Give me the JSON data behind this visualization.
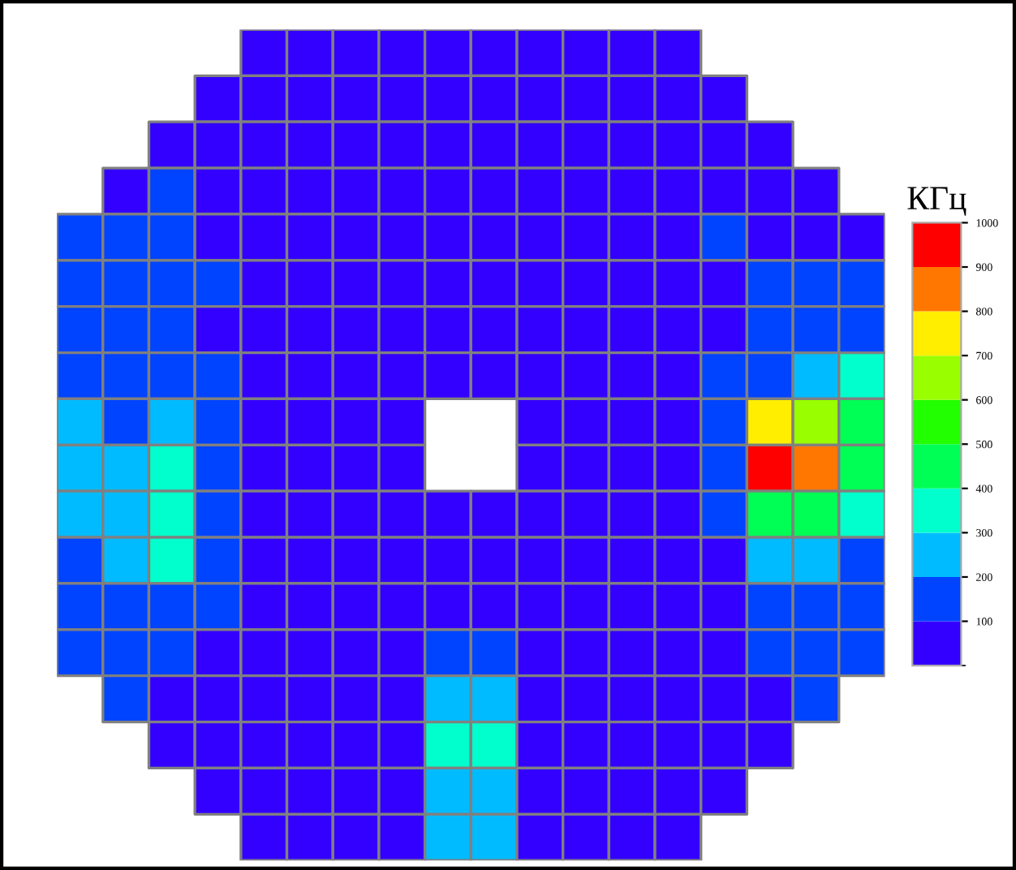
{
  "chart_data": {
    "type": "heatmap",
    "clabel": "КГц",
    "categories": [
      null,
      null,
      null,
      null,
      null,
      null,
      null,
      null,
      null,
      null,
      null,
      null,
      null,
      null,
      null,
      null,
      null,
      null
    ],
    "y_categories": [
      null,
      null,
      null,
      null,
      null,
      null,
      null,
      null,
      null,
      null,
      null,
      null,
      null,
      null,
      null,
      null,
      null,
      null
    ],
    "cells": [
      [
        null,
        null,
        null,
        null,
        50,
        50,
        50,
        50,
        50,
        50,
        50,
        50,
        50,
        50,
        null,
        null,
        null,
        null
      ],
      [
        null,
        null,
        null,
        50,
        50,
        50,
        50,
        50,
        50,
        50,
        50,
        50,
        50,
        50,
        50,
        null,
        null,
        null
      ],
      [
        null,
        null,
        50,
        50,
        50,
        50,
        50,
        50,
        50,
        50,
        50,
        50,
        50,
        50,
        50,
        50,
        null,
        null
      ],
      [
        null,
        50,
        150,
        50,
        50,
        50,
        50,
        50,
        50,
        50,
        50,
        50,
        50,
        50,
        50,
        50,
        50,
        null
      ],
      [
        150,
        150,
        150,
        50,
        50,
        50,
        50,
        50,
        50,
        50,
        50,
        50,
        50,
        50,
        150,
        50,
        50,
        50
      ],
      [
        150,
        150,
        150,
        150,
        50,
        50,
        50,
        50,
        50,
        50,
        50,
        50,
        50,
        50,
        50,
        150,
        150,
        150
      ],
      [
        150,
        150,
        150,
        50,
        50,
        50,
        50,
        50,
        50,
        50,
        50,
        50,
        50,
        50,
        50,
        150,
        150,
        150
      ],
      [
        150,
        150,
        150,
        150,
        50,
        50,
        50,
        50,
        50,
        50,
        50,
        50,
        50,
        50,
        150,
        150,
        250,
        350
      ],
      [
        250,
        150,
        250,
        150,
        50,
        50,
        50,
        50,
        null,
        null,
        50,
        50,
        50,
        50,
        150,
        750,
        650,
        450
      ],
      [
        250,
        250,
        350,
        150,
        50,
        50,
        50,
        50,
        null,
        null,
        50,
        50,
        50,
        50,
        150,
        950,
        850,
        450
      ],
      [
        250,
        250,
        350,
        150,
        50,
        50,
        50,
        50,
        50,
        50,
        50,
        50,
        50,
        50,
        150,
        450,
        450,
        350
      ],
      [
        150,
        250,
        350,
        150,
        50,
        50,
        50,
        50,
        50,
        50,
        50,
        50,
        50,
        50,
        50,
        250,
        250,
        150
      ],
      [
        150,
        150,
        150,
        150,
        50,
        50,
        50,
        50,
        50,
        50,
        50,
        50,
        50,
        50,
        50,
        150,
        150,
        150
      ],
      [
        150,
        150,
        150,
        50,
        50,
        50,
        50,
        50,
        150,
        150,
        50,
        50,
        50,
        50,
        50,
        150,
        150,
        150
      ],
      [
        null,
        150,
        50,
        50,
        50,
        50,
        50,
        50,
        250,
        250,
        50,
        50,
        50,
        50,
        50,
        50,
        150,
        null
      ],
      [
        null,
        null,
        50,
        50,
        50,
        50,
        50,
        50,
        350,
        350,
        50,
        50,
        50,
        50,
        50,
        50,
        null,
        null
      ],
      [
        null,
        null,
        null,
        50,
        50,
        50,
        50,
        50,
        250,
        250,
        50,
        50,
        50,
        50,
        50,
        null,
        null,
        null
      ],
      [
        null,
        null,
        null,
        null,
        50,
        50,
        50,
        50,
        250,
        250,
        50,
        50,
        50,
        50,
        null,
        null,
        null,
        null
      ]
    ],
    "colors": [
      "#3300ff",
      "#0044ff",
      "#00bbff",
      "#00ffcc",
      "#00ff55",
      "#22ff00",
      "#99ff00",
      "#ffee00",
      "#ff7700",
      "#ff0000"
    ],
    "clim": [
      0,
      1000
    ],
    "cticks": [
      100,
      200,
      300,
      400,
      500,
      600,
      700,
      800,
      900,
      1000
    ]
  }
}
